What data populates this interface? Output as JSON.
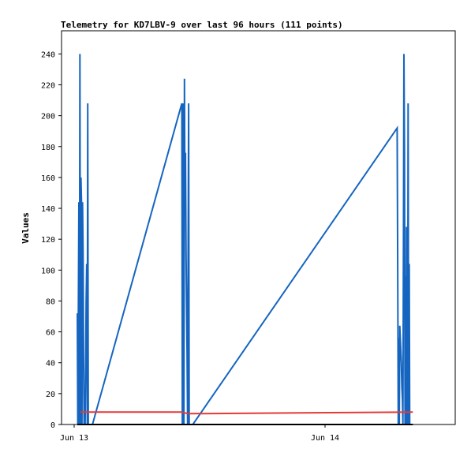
{
  "chart_data": {
    "type": "line",
    "title": "Telemetry for KD7LBV-9 over last 96 hours (111 points)",
    "xlabel": "",
    "ylabel": "Values",
    "ylim": [
      0,
      255
    ],
    "x_unit": "hours",
    "xlim": [
      0,
      37.4
    ],
    "x_ticks": [
      {
        "label": "Jun 13",
        "value": 0
      },
      {
        "label": "Jun 14",
        "value": 24
      }
    ],
    "y_ticks": [
      0,
      20,
      40,
      60,
      80,
      100,
      120,
      140,
      160,
      180,
      200,
      220,
      240
    ],
    "grid": false,
    "series": [
      {
        "name": "",
        "color": "#1565c0",
        "x": [
          0.3,
          0.35,
          0.45,
          0.5,
          0.55,
          0.6,
          0.65,
          0.7,
          0.75,
          0.8,
          0.85,
          0.9,
          0.95,
          1.0,
          1.05,
          1.1,
          1.15,
          1.2,
          1.25,
          1.3,
          1.35,
          1.4,
          1.45,
          1.5,
          1.6,
          1.65,
          1.7,
          1.75,
          10.3,
          10.35,
          10.4,
          10.45,
          10.5,
          10.55,
          10.6,
          10.65,
          10.7,
          10.75,
          10.8,
          10.85,
          10.9,
          10.95,
          11.0,
          11.05,
          11.1,
          11.15,
          11.2,
          11.25,
          11.3,
          11.35,
          30.9,
          30.95,
          31.0,
          31.05,
          31.1,
          31.15,
          31.2,
          31.25,
          31.3,
          31.35,
          31.4,
          31.45,
          31.5,
          31.55,
          31.6,
          31.65,
          31.7,
          31.75,
          31.8,
          31.85,
          31.9,
          31.95,
          32.0,
          32.05,
          32.1,
          32.15,
          32.2,
          32.25,
          32.3,
          32.35,
          32.4
        ],
        "y": [
          72,
          0,
          144,
          0,
          240,
          0,
          160,
          144,
          0,
          144,
          112,
          48,
          0,
          0,
          0,
          40,
          80,
          104,
          0,
          208,
          0,
          0,
          0,
          0,
          0,
          0,
          0,
          0,
          208,
          0,
          0,
          208,
          0,
          224,
          144,
          176,
          112,
          80,
          48,
          0,
          104,
          208,
          0,
          0,
          0,
          0,
          0,
          0,
          0,
          0,
          192,
          104,
          0,
          56,
          0,
          64,
          56,
          48,
          40,
          24,
          16,
          0,
          120,
          240,
          176,
          0,
          96,
          0,
          128,
          0,
          0,
          208,
          0,
          104,
          0,
          0,
          0,
          0,
          0,
          0,
          0
        ]
      },
      {
        "name": "",
        "color": "#e53935",
        "x": [
          0.6,
          10.3,
          10.9,
          32.4
        ],
        "y": [
          8,
          8,
          7,
          8
        ]
      },
      {
        "name": "",
        "color": "#000000",
        "x": [
          0.3,
          32.4
        ],
        "y": [
          0,
          0
        ]
      }
    ]
  }
}
